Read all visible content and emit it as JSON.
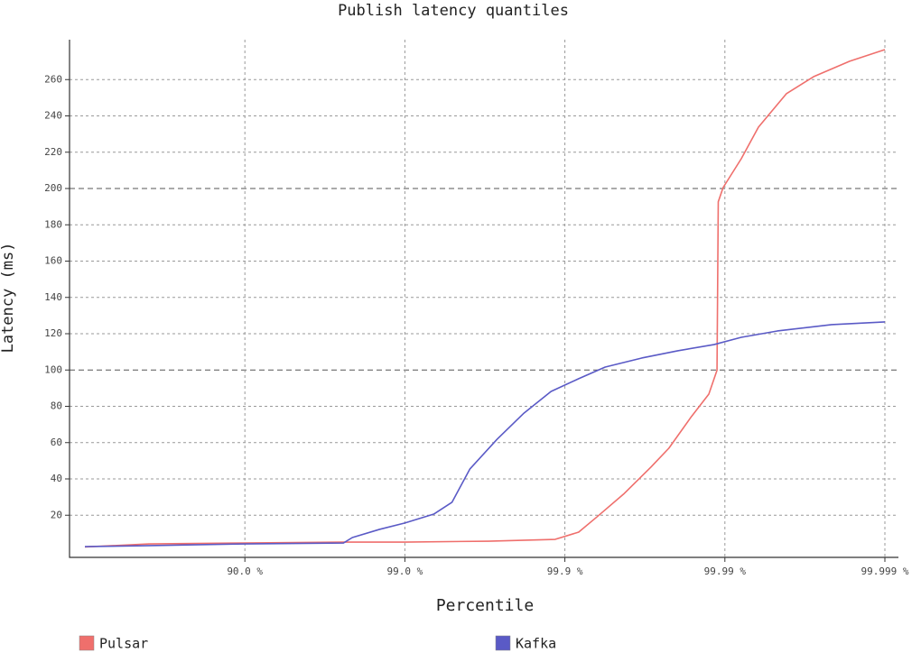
{
  "chart_data": {
    "type": "line",
    "title": "Publish latency quantiles",
    "x_label": "Percentile",
    "y_label": "Latency (ms)",
    "x_scale": "nines",
    "xlim": [
      0,
      99.999
    ],
    "ylim": [
      0,
      280
    ],
    "xticks": [
      {
        "value": 90.0,
        "label": "90.0 %"
      },
      {
        "value": 99.0,
        "label": "99.0 %"
      },
      {
        "value": 99.9,
        "label": "99.9 %"
      },
      {
        "value": 99.99,
        "label": "99.99 %"
      },
      {
        "value": 99.999,
        "label": "99.999 %"
      }
    ],
    "yticks": [
      20,
      40,
      60,
      80,
      100,
      120,
      140,
      160,
      180,
      200,
      220,
      240,
      260
    ],
    "grid": true,
    "legend": "bottom",
    "series": [
      {
        "name": "Pulsar",
        "color": "#ef6f6c",
        "x": [
          0,
          60.3,
          90,
          97.7,
          99,
          99.7,
          99.885,
          99.918,
          99.937,
          99.957,
          99.971,
          99.9776,
          99.9838,
          99.9874,
          99.9888,
          99.989,
          99.98974,
          99.9921,
          99.99383,
          99.99587,
          99.99721,
          99.99834,
          99.999
        ],
        "values": [
          2.5,
          4.2,
          4.7,
          5.2,
          5.2,
          5.7,
          6.7,
          10.7,
          19.1,
          31.6,
          46.5,
          56.9,
          74.3,
          86.7,
          99.9,
          192.7,
          200.5,
          216.4,
          233.8,
          252.2,
          261.6,
          270.1,
          276.5
        ]
      },
      {
        "name": "Kafka",
        "color": "#5a5ac6",
        "x": [
          0,
          57.6,
          90,
          97.58,
          97.87,
          98.56,
          99,
          99.34,
          99.492,
          99.608,
          99.735,
          99.82,
          99.878,
          99.918,
          99.944,
          99.9669,
          99.9803,
          99.9883,
          99.9921,
          99.9953,
          99.99785,
          99.999
        ],
        "values": [
          2.7,
          3.2,
          4.2,
          4.7,
          7.7,
          12.2,
          15.7,
          20.6,
          27.1,
          45.5,
          61.9,
          76.3,
          88.2,
          95.2,
          101.6,
          106.6,
          110.6,
          114.0,
          118.0,
          121.5,
          125.0,
          126.5
        ]
      }
    ]
  }
}
